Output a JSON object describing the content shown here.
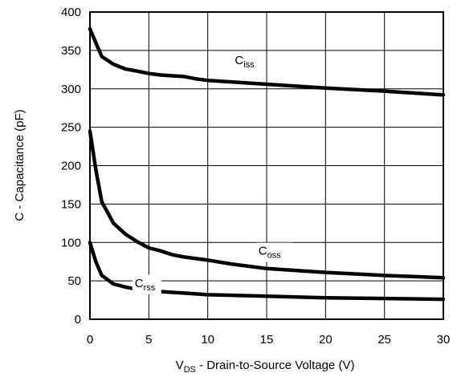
{
  "chart_data": {
    "type": "line",
    "title": "",
    "xlabel": {
      "main": "V",
      "sub": "DS",
      "rest": " - Drain-to-Source Voltage (V)"
    },
    "ylabel": "C - Capacitance (pF)",
    "xlim": [
      0,
      30
    ],
    "ylim": [
      0,
      400
    ],
    "xticks": [
      0,
      5,
      10,
      15,
      20,
      25,
      30
    ],
    "yticks": [
      0,
      50,
      100,
      150,
      200,
      250,
      300,
      350,
      400
    ],
    "grid": true,
    "legend": "none",
    "colors": {
      "line": "#000000",
      "grid": "#000000"
    },
    "series": [
      {
        "name": "Ciss",
        "label_main": "C",
        "label_sub": "iss",
        "x": [
          0,
          1,
          2,
          3,
          4,
          5,
          6,
          7,
          8,
          9,
          10,
          12,
          15,
          20,
          25,
          30
        ],
        "y": [
          378,
          342,
          332,
          326,
          323,
          320,
          318,
          317,
          316,
          313,
          311,
          309,
          306,
          301,
          297,
          292
        ]
      },
      {
        "name": "Coss",
        "label_main": "C",
        "label_sub": "oss",
        "x": [
          0,
          0.5,
          1,
          2,
          3,
          4,
          5,
          6,
          7,
          8,
          9,
          10,
          12,
          15,
          20,
          25,
          30
        ],
        "y": [
          245,
          195,
          153,
          125,
          111,
          101,
          93,
          89,
          84,
          81,
          79,
          77,
          72,
          66,
          61,
          57,
          54
        ]
      },
      {
        "name": "Crss",
        "label_main": "C",
        "label_sub": "rss",
        "x": [
          0,
          0.5,
          1,
          2,
          3,
          4,
          5,
          6,
          7,
          8,
          9,
          10,
          15,
          20,
          25,
          30
        ],
        "y": [
          100,
          75,
          57,
          46,
          42,
          39,
          37,
          36,
          35,
          34,
          33,
          32,
          30,
          28,
          27,
          26
        ]
      }
    ]
  }
}
